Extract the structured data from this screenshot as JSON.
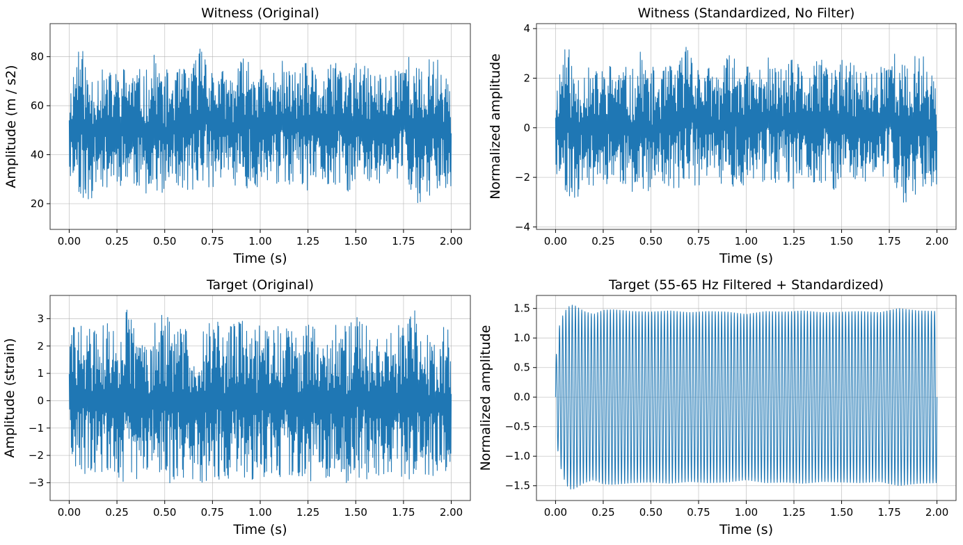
{
  "colors": {
    "line": "#1f77b4",
    "grid": "#b0b0b0"
  },
  "chart_data": [
    {
      "type": "line",
      "title": "Witness (Original)",
      "xlabel": "Time (s)",
      "ylabel": "Amplitude (m / s2)",
      "xlim": [
        -0.1,
        2.1
      ],
      "ylim": [
        9.5,
        93.5
      ],
      "xticks": [
        0.0,
        0.25,
        0.5,
        0.75,
        1.0,
        1.25,
        1.5,
        1.75,
        2.0
      ],
      "xtick_labels": [
        "0.00",
        "0.25",
        "0.50",
        "0.75",
        "1.00",
        "1.25",
        "1.50",
        "1.75",
        "2.00"
      ],
      "yticks": [
        20,
        40,
        60,
        80
      ],
      "ytick_labels": [
        "20",
        "40",
        "60",
        "80"
      ],
      "grid": true,
      "series": [
        {
          "x_range": [
            0,
            2
          ],
          "envelope_x": [
            0,
            0.05,
            0.1,
            0.15,
            0.2,
            0.25,
            0.3,
            0.35,
            0.4,
            0.45,
            0.5,
            0.55,
            0.6,
            0.65,
            0.7,
            0.75,
            0.8,
            0.85,
            0.9,
            0.95,
            1.0,
            1.05,
            1.1,
            1.15,
            1.2,
            1.25,
            1.3,
            1.35,
            1.4,
            1.45,
            1.5,
            1.55,
            1.6,
            1.65,
            1.7,
            1.75,
            1.8,
            1.85,
            1.9,
            1.95,
            2.0
          ],
          "envelope_max": [
            66,
            89,
            75,
            76,
            74,
            75,
            77,
            76,
            74,
            82,
            75,
            74,
            76,
            78,
            90,
            76,
            75,
            74,
            79,
            82,
            76,
            73,
            80,
            75,
            76,
            78,
            75,
            74,
            82,
            76,
            78,
            76,
            75,
            74,
            76,
            86,
            78,
            75,
            82,
            78,
            72
          ],
          "envelope_min": [
            31,
            24,
            18,
            27,
            26,
            27,
            28,
            26,
            24,
            26,
            20,
            28,
            24,
            25,
            28,
            26,
            30,
            26,
            28,
            25,
            26,
            27,
            28,
            26,
            28,
            24,
            26,
            25,
            27,
            23,
            26,
            28,
            25,
            26,
            27,
            28,
            24,
            14,
            25,
            26,
            18
          ]
        }
      ]
    },
    {
      "type": "line",
      "title": "Witness (Standardized, No Filter)",
      "xlabel": "Time (s)",
      "ylabel": "Normalized amplitude",
      "xlim": [
        -0.1,
        2.1
      ],
      "ylim": [
        -4.1,
        4.2
      ],
      "xticks": [
        0.0,
        0.25,
        0.5,
        0.75,
        1.0,
        1.25,
        1.5,
        1.75,
        2.0
      ],
      "xtick_labels": [
        "0.00",
        "0.25",
        "0.50",
        "0.75",
        "1.00",
        "1.25",
        "1.50",
        "1.75",
        "2.00"
      ],
      "yticks": [
        -4,
        -2,
        0,
        2,
        4
      ],
      "ytick_labels": [
        "−4",
        "−2",
        "0",
        "2",
        "4"
      ],
      "grid": true,
      "series": [
        {
          "x_range": [
            0,
            2
          ],
          "envelope_x": [
            0,
            0.05,
            0.1,
            0.15,
            0.2,
            0.25,
            0.3,
            0.35,
            0.4,
            0.45,
            0.5,
            0.55,
            0.6,
            0.65,
            0.7,
            0.75,
            0.8,
            0.85,
            0.9,
            0.95,
            1.0,
            1.05,
            1.1,
            1.15,
            1.2,
            1.25,
            1.3,
            1.35,
            1.4,
            1.45,
            1.5,
            1.55,
            1.6,
            1.65,
            1.7,
            1.75,
            1.8,
            1.85,
            1.9,
            1.95,
            2.0
          ],
          "envelope_max": [
            1.6,
            3.85,
            2.4,
            2.6,
            2.3,
            2.5,
            2.7,
            2.6,
            2.3,
            3.2,
            2.5,
            2.3,
            2.6,
            2.8,
            3.9,
            2.6,
            2.5,
            2.4,
            2.9,
            3.2,
            2.6,
            2.3,
            3.0,
            2.5,
            2.6,
            2.8,
            2.5,
            2.4,
            3.2,
            2.6,
            2.8,
            2.6,
            2.5,
            2.4,
            2.6,
            3.6,
            2.8,
            2.5,
            3.2,
            2.8,
            2.2
          ],
          "envelope_min": [
            -1.9,
            -2.6,
            -3.2,
            -2.3,
            -2.4,
            -2.3,
            -2.2,
            -2.4,
            -2.6,
            -2.4,
            -3.0,
            -2.2,
            -2.6,
            -2.5,
            -2.2,
            -2.4,
            -2.0,
            -2.4,
            -2.2,
            -2.5,
            -2.4,
            -2.3,
            -2.2,
            -2.4,
            -2.2,
            -2.6,
            -2.4,
            -2.5,
            -2.3,
            -2.7,
            -2.4,
            -2.2,
            -2.5,
            -2.4,
            -2.3,
            -2.2,
            -2.6,
            -3.7,
            -2.5,
            -2.4,
            -3.2
          ]
        }
      ]
    },
    {
      "type": "line",
      "title": "Target (Original)",
      "xlabel": "Time (s)",
      "ylabel": "Amplitude (strain)",
      "xlim": [
        -0.1,
        2.1
      ],
      "ylim": [
        -3.65,
        3.85
      ],
      "xticks": [
        0.0,
        0.25,
        0.5,
        0.75,
        1.0,
        1.25,
        1.5,
        1.75,
        2.0
      ],
      "xtick_labels": [
        "0.00",
        "0.25",
        "0.50",
        "0.75",
        "1.00",
        "1.25",
        "1.50",
        "1.75",
        "2.00"
      ],
      "yticks": [
        -3,
        -2,
        -1,
        0,
        1,
        2,
        3
      ],
      "ytick_labels": [
        "−3",
        "−2",
        "−1",
        "0",
        "1",
        "2",
        "3"
      ],
      "grid": true,
      "series": [
        {
          "x_range": [
            0,
            2
          ],
          "envelope_x": [
            0,
            0.05,
            0.1,
            0.15,
            0.2,
            0.25,
            0.3,
            0.35,
            0.4,
            0.45,
            0.5,
            0.55,
            0.6,
            0.65,
            0.7,
            0.75,
            0.8,
            0.85,
            0.9,
            0.95,
            1.0,
            1.05,
            1.1,
            1.15,
            1.2,
            1.25,
            1.3,
            1.35,
            1.4,
            1.45,
            1.5,
            1.55,
            1.6,
            1.65,
            1.7,
            1.75,
            1.8,
            1.85,
            1.9,
            1.95,
            2.0
          ],
          "envelope_max": [
            2.7,
            2.9,
            2.8,
            2.7,
            2.9,
            2.6,
            3.55,
            2.7,
            2.8,
            2.9,
            3.4,
            2.7,
            2.8,
            2.7,
            2.8,
            3.1,
            2.9,
            2.8,
            3.2,
            2.7,
            2.9,
            2.8,
            3.0,
            2.8,
            2.7,
            3.0,
            2.8,
            2.7,
            2.9,
            2.8,
            3.3,
            2.8,
            2.7,
            2.9,
            2.8,
            2.8,
            3.4,
            2.9,
            2.7,
            2.8,
            2.7
          ],
          "envelope_min": [
            -2.4,
            -2.5,
            -2.8,
            -2.7,
            -3.0,
            -2.7,
            -3.3,
            -2.9,
            -3.0,
            -2.8,
            -3.2,
            -3.0,
            -2.8,
            -2.9,
            -3.0,
            -2.8,
            -3.0,
            -2.9,
            -2.8,
            -3.0,
            -2.9,
            -2.8,
            -3.0,
            -2.9,
            -2.8,
            -3.0,
            -2.9,
            -2.8,
            -2.9,
            -3.0,
            -2.8,
            -2.9,
            -3.0,
            -2.8,
            -2.9,
            -2.8,
            -3.3,
            -3.2,
            -2.9,
            -3.0,
            -2.9
          ]
        }
      ]
    },
    {
      "type": "line",
      "title": "Target (55-65 Hz Filtered + Standardized)",
      "xlabel": "Time (s)",
      "ylabel": "Normalized amplitude",
      "xlim": [
        -0.1,
        2.1
      ],
      "ylim": [
        -1.75,
        1.72
      ],
      "xticks": [
        0.0,
        0.25,
        0.5,
        0.75,
        1.0,
        1.25,
        1.5,
        1.75,
        2.0
      ],
      "xtick_labels": [
        "0.00",
        "0.25",
        "0.50",
        "0.75",
        "1.00",
        "1.25",
        "1.50",
        "1.75",
        "2.00"
      ],
      "yticks": [
        -1.5,
        -1.0,
        -0.5,
        0.0,
        0.5,
        1.0,
        1.5
      ],
      "ytick_labels": [
        "−1.5",
        "−1.0",
        "−0.5",
        "0.0",
        "0.5",
        "1.0",
        "1.5"
      ],
      "grid": true,
      "series": [
        {
          "x_range": [
            0,
            2
          ],
          "envelope_x": [
            0,
            0.02,
            0.04,
            0.06,
            0.08,
            0.1,
            0.15,
            0.2,
            0.25,
            0.3,
            0.4,
            0.5,
            0.6,
            0.7,
            0.8,
            0.9,
            1.0,
            1.1,
            1.2,
            1.3,
            1.4,
            1.5,
            1.6,
            1.7,
            1.8,
            1.9,
            2.0
          ],
          "envelope_max": [
            0.6,
            1.2,
            1.4,
            1.5,
            1.56,
            1.55,
            1.45,
            1.4,
            1.47,
            1.48,
            1.45,
            1.44,
            1.46,
            1.43,
            1.45,
            1.44,
            1.4,
            1.45,
            1.44,
            1.46,
            1.43,
            1.44,
            1.45,
            1.43,
            1.5,
            1.46,
            1.45
          ],
          "envelope_min": [
            -0.6,
            -1.1,
            -1.35,
            -1.5,
            -1.56,
            -1.55,
            -1.45,
            -1.4,
            -1.47,
            -1.48,
            -1.45,
            -1.44,
            -1.46,
            -1.43,
            -1.45,
            -1.44,
            -1.4,
            -1.45,
            -1.44,
            -1.46,
            -1.43,
            -1.44,
            -1.45,
            -1.43,
            -1.5,
            -1.46,
            -1.45
          ]
        }
      ]
    }
  ]
}
